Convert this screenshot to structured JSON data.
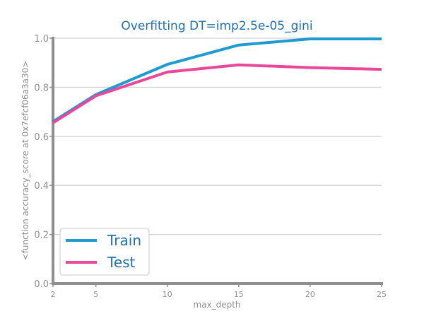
{
  "chart_data": {
    "type": "line",
    "title": "Overfitting DT=imp2.5e-05_gini",
    "xlabel": "max_depth",
    "ylabel": "<function accuracy_score at 0x7efcf06a3a30>",
    "x": [
      2,
      5,
      10,
      15,
      20,
      25
    ],
    "xlim": [
      2,
      25
    ],
    "ylim": [
      0.0,
      1.0
    ],
    "xticks": [
      2,
      5,
      10,
      15,
      20,
      25
    ],
    "yticks": [
      0.0,
      0.2,
      0.4,
      0.6,
      0.8,
      1.0
    ],
    "grid": "horizontal",
    "legend_position": "lower-left",
    "series": [
      {
        "name": "Train",
        "color": "#1f9bd1",
        "values": [
          0.66,
          0.77,
          0.893,
          0.972,
          0.997,
          0.997
        ]
      },
      {
        "name": "Test",
        "color": "#e8479a",
        "values": [
          0.655,
          0.765,
          0.862,
          0.891,
          0.88,
          0.873
        ]
      }
    ],
    "colors": {
      "title": "#1f6fb2",
      "axis": "#8f8f8f",
      "tick_text": "#8f8f8f",
      "grid": "#d3d3d3",
      "legend_text": "#1f6fb2",
      "legend_border": "#d3d3d3"
    }
  }
}
